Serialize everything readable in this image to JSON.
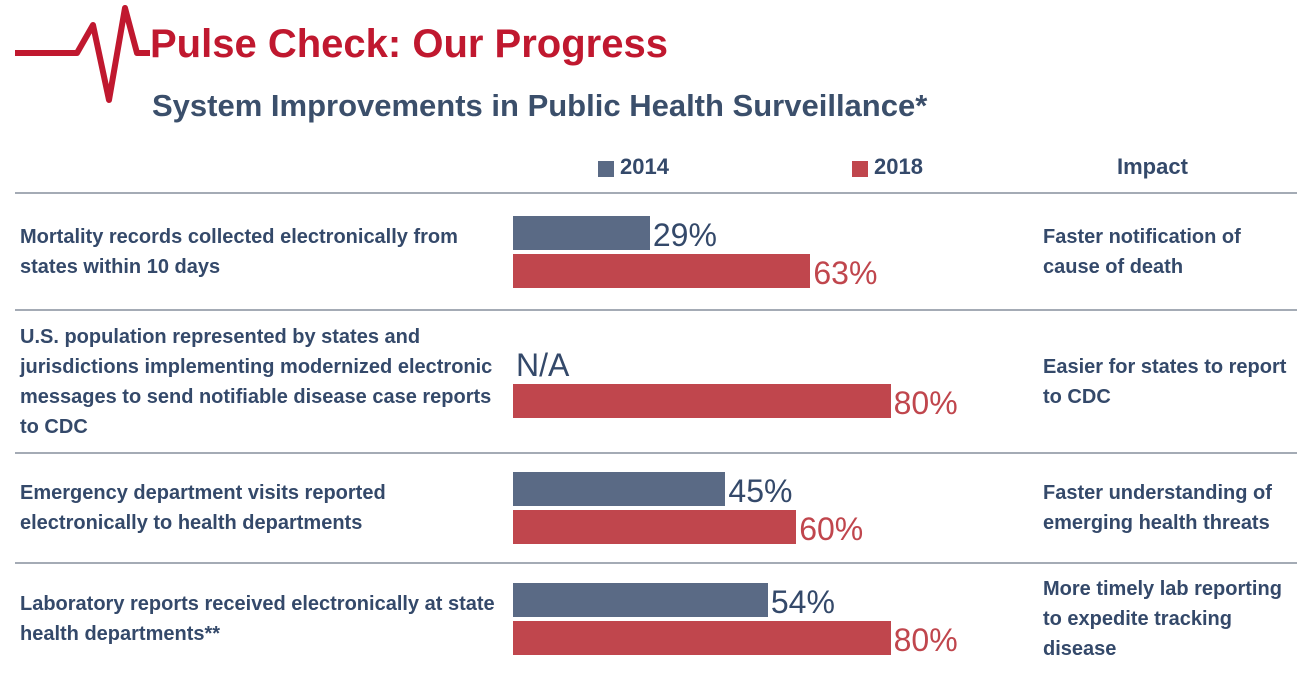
{
  "chart_data": {
    "type": "hbar",
    "title": "Pulse Check: Our Progress",
    "subtitle": "System Improvements in Public Health Surveillance*",
    "impact_header": "Impact",
    "categories": [
      "Mortality records collected electronically from states within 10 days",
      "U.S. population represented by states and jurisdictions implementing modernized electronic messages to send notifiable disease case reports to CDC",
      "Emergency department visits reported electronically to health departments",
      "Laboratory reports received electronically at state health departments**"
    ],
    "impacts": [
      "Faster notification of cause of death",
      "Easier for states to report to CDC",
      "Faster understanding of emerging health threats",
      "More timely lab reporting to expedite tracking disease"
    ],
    "series": [
      {
        "name": "2014",
        "color": "#5a6a85",
        "values": [
          29,
          null,
          45,
          54
        ],
        "value_labels": [
          "29%",
          "N/A",
          "45%",
          "54%"
        ]
      },
      {
        "name": "2018",
        "color": "#c0464d",
        "values": [
          63,
          80,
          60,
          80
        ],
        "value_labels": [
          "63%",
          "80%",
          "60%",
          "80%"
        ]
      }
    ],
    "xlim": [
      0,
      100
    ]
  }
}
